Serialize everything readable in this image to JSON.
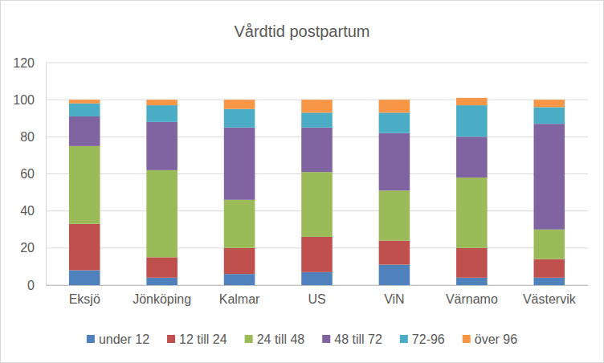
{
  "chart_data": {
    "type": "bar",
    "title": "Vårdtid postpartum",
    "categories": [
      "Eksjö",
      "Jönköping",
      "Kalmar",
      "US",
      "ViN",
      "Värnamo",
      "Västervik"
    ],
    "series": [
      {
        "name": "under 12",
        "color": "#4f81bd",
        "values": [
          8,
          4,
          6,
          7,
          11,
          4,
          4
        ]
      },
      {
        "name": "12 till 24",
        "color": "#c0504d",
        "values": [
          25,
          11,
          14,
          19,
          13,
          16,
          10
        ]
      },
      {
        "name": "24 till 48",
        "color": "#9bbb59",
        "values": [
          42,
          47,
          26,
          35,
          27,
          38,
          16
        ]
      },
      {
        "name": "48 till 72",
        "color": "#8064a2",
        "values": [
          16,
          26,
          39,
          24,
          31,
          22,
          57
        ]
      },
      {
        "name": "72-96",
        "color": "#4bacc6",
        "values": [
          7,
          9,
          10,
          8,
          11,
          17,
          9
        ]
      },
      {
        "name": "över 96",
        "color": "#f79646",
        "values": [
          2,
          3,
          5,
          7,
          7,
          4,
          4
        ]
      }
    ],
    "ylim": [
      0,
      120
    ],
    "yticks": [
      0,
      20,
      40,
      60,
      80,
      100,
      120
    ],
    "stacked": true,
    "grid": true,
    "legend": "bottom"
  }
}
